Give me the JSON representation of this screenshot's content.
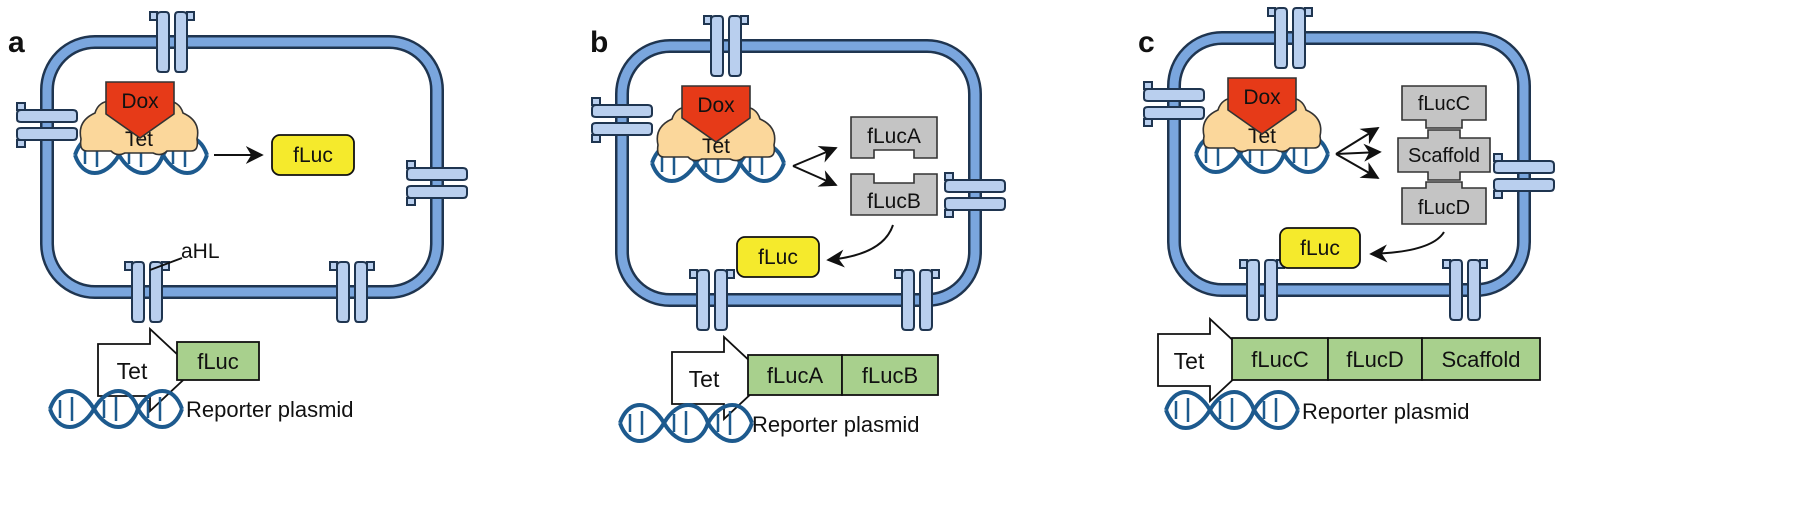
{
  "panels": [
    {
      "letter": "a",
      "dox": "Dox",
      "tet": "Tet",
      "product": "fLuc",
      "channel_label": "aHL",
      "promoter": "Tet",
      "genes": [
        "fLuc"
      ],
      "plasmid_label": "Reporter plasmid"
    },
    {
      "letter": "b",
      "dox": "Dox",
      "tet": "Tet",
      "fragments": [
        "fLucA",
        "fLucB"
      ],
      "product": "fLuc",
      "promoter": "Tet",
      "genes": [
        "fLucA",
        "fLucB"
      ],
      "plasmid_label": "Reporter plasmid"
    },
    {
      "letter": "c",
      "dox": "Dox",
      "tet": "Tet",
      "fragments": [
        "fLucC",
        "Scaffold",
        "fLucD"
      ],
      "product": "fLuc",
      "promoter": "Tet",
      "genes": [
        "fLucC",
        "fLucD",
        "Scaffold"
      ],
      "plasmid_label": "Reporter plasmid"
    }
  ],
  "colors": {
    "membrane_outer": "#1f3550",
    "membrane_inner": "#7aa6de",
    "channel": "#b9cfee",
    "dna": "#1d5a8e",
    "dox": "#e63a18",
    "tet": "#fbd79b",
    "fluc": "#f5ea2c",
    "fragment": "#c4c4c4",
    "gene": "#a8d08d"
  },
  "icons": [
    "cell-membrane-icon",
    "channel-icon",
    "dna-helix-icon",
    "tet-repressor-icon",
    "dox-icon",
    "promoter-arrow-icon"
  ]
}
